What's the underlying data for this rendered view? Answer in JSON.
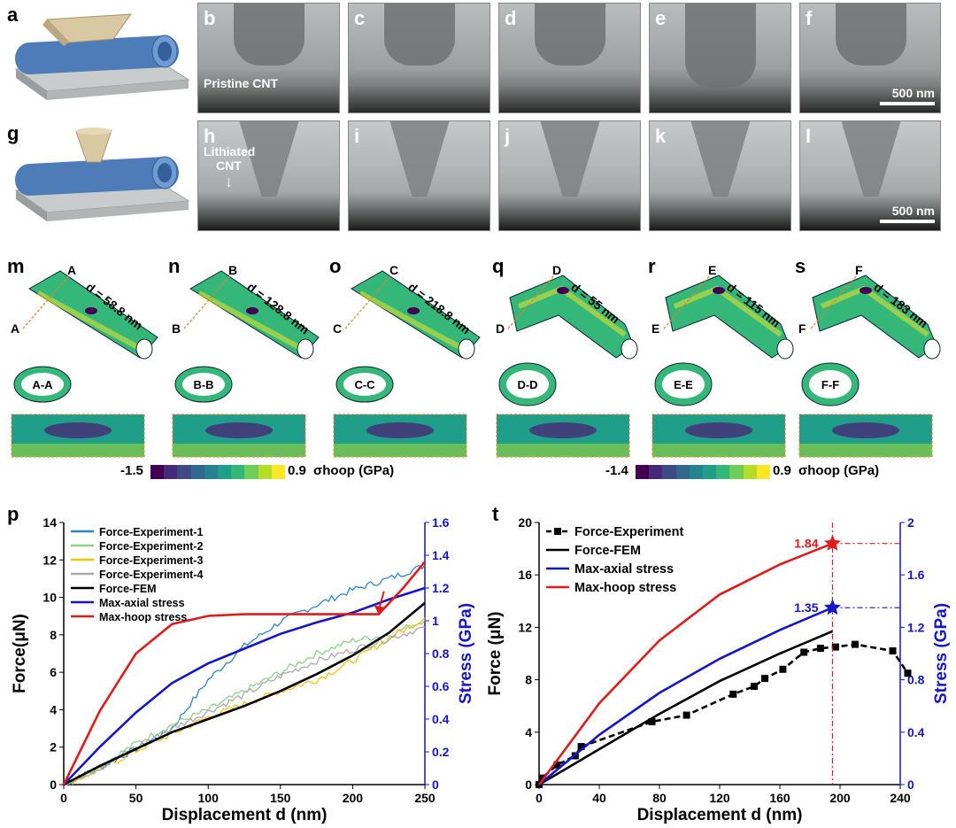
{
  "figure": {
    "letters": [
      "a",
      "b",
      "c",
      "d",
      "e",
      "f",
      "g",
      "h",
      "i",
      "j",
      "k",
      "l",
      "m",
      "n",
      "o",
      "q",
      "r",
      "s",
      "p",
      "t"
    ],
    "tem_b_caption": "Pristine CNT",
    "tem_h_caption_line1": "Lithiated",
    "tem_h_caption_line2": "CNT",
    "scale_row1": "500 nm",
    "scale_row2": "500 nm",
    "fem": {
      "m": {
        "d": "d = 58.8 nm",
        "sec": "A-A",
        "end": "A"
      },
      "n": {
        "d": "d = 128.8 nm",
        "sec": "B-B",
        "end": "B"
      },
      "o": {
        "d": "d = 218.8 nm",
        "sec": "C-C",
        "end": "C"
      },
      "q": {
        "d": "d = 55 nm",
        "sec": "D-D",
        "end": "D"
      },
      "r": {
        "d": "d = 115 nm",
        "sec": "E-E",
        "end": "E"
      },
      "s": {
        "d": "d = 183 nm",
        "sec": "F-F",
        "end": "F"
      }
    },
    "colorbar_left": {
      "min": "-1.5",
      "max": "0.9",
      "label": "σhoop (GPa)"
    },
    "colorbar_right": {
      "min": "-1.4",
      "max": "0.9",
      "label": "σhoop (GPa)"
    },
    "colormap": [
      "#440154",
      "#482878",
      "#3e4989",
      "#31688e",
      "#26828e",
      "#1f9e89",
      "#35b779",
      "#6ece58",
      "#b5de2b",
      "#fde725"
    ]
  },
  "chart_data": [
    {
      "type": "line",
      "panel": "p",
      "xlabel": "Displacement d (nm)",
      "ylabel": "Force(μN)",
      "y2label": "Stress (GPa)",
      "xlim": [
        0,
        250
      ],
      "ylim": [
        0,
        14
      ],
      "y2lim": [
        0,
        1.6
      ],
      "xticks": [
        0,
        50,
        100,
        150,
        200,
        250
      ],
      "yticks": [
        0,
        2,
        4,
        6,
        8,
        10,
        12,
        14
      ],
      "y2ticks": [
        0,
        0.2,
        0.4,
        0.6,
        0.8,
        1.0,
        1.2,
        1.4,
        1.6
      ],
      "legend_position": "top-left",
      "series": [
        {
          "name": "Force-Experiment-1",
          "color": "#2e86c8",
          "axis": "left",
          "noisy": true,
          "x": [
            0,
            25,
            50,
            75,
            100,
            125,
            150,
            175,
            200,
            225,
            250
          ],
          "y": [
            0,
            0.9,
            1.9,
            3.0,
            5.6,
            7.4,
            8.7,
            9.6,
            10.4,
            11.0,
            11.7
          ]
        },
        {
          "name": "Force-Experiment-2",
          "color": "#8fd18c",
          "axis": "left",
          "noisy": true,
          "x": [
            0,
            25,
            50,
            75,
            100,
            125,
            150,
            175,
            200,
            225,
            250
          ],
          "y": [
            0,
            1.0,
            2.2,
            3.2,
            4.0,
            5.0,
            6.0,
            7.0,
            7.7,
            8.0,
            8.8
          ]
        },
        {
          "name": "Force-Experiment-3",
          "color": "#f5c211",
          "axis": "left",
          "noisy": true,
          "x": [
            0,
            25,
            50,
            75,
            100,
            125,
            150,
            175,
            200,
            225,
            250
          ],
          "y": [
            0,
            0.8,
            1.8,
            2.7,
            3.6,
            4.3,
            5.0,
            5.6,
            6.6,
            7.8,
            8.9
          ]
        },
        {
          "name": "Force-Experiment-4",
          "color": "#a9a9a9",
          "axis": "left",
          "noisy": true,
          "x": [
            0,
            25,
            50,
            75,
            100,
            125,
            150,
            175,
            200,
            225,
            250
          ],
          "y": [
            0,
            0.9,
            2.0,
            3.0,
            3.9,
            4.8,
            5.8,
            6.6,
            7.2,
            7.8,
            8.4
          ]
        },
        {
          "name": "Force-FEM",
          "color": "#000000",
          "axis": "left",
          "x": [
            0,
            25,
            50,
            75,
            100,
            125,
            150,
            175,
            200,
            225,
            250
          ],
          "y": [
            0,
            1.0,
            1.9,
            2.8,
            3.5,
            4.2,
            5.0,
            5.9,
            6.9,
            8.1,
            9.7
          ]
        },
        {
          "name": "Max-axial stress",
          "color": "#1515c8",
          "axis": "right",
          "x": [
            0,
            25,
            50,
            75,
            100,
            125,
            150,
            175,
            200,
            225,
            250
          ],
          "y": [
            0,
            0.23,
            0.44,
            0.62,
            0.74,
            0.83,
            0.92,
            0.99,
            1.05,
            1.13,
            1.2
          ]
        },
        {
          "name": "Max-hoop stress",
          "color": "#e01b1b",
          "axis": "right",
          "x": [
            0,
            25,
            50,
            75,
            100,
            125,
            150,
            175,
            200,
            218,
            235,
            250
          ],
          "y": [
            0,
            0.45,
            0.8,
            0.98,
            1.03,
            1.04,
            1.04,
            1.04,
            1.04,
            1.04,
            1.2,
            1.36
          ]
        }
      ],
      "arrow_at": [
        218,
        1.04
      ]
    },
    {
      "type": "line",
      "panel": "t",
      "xlabel": "Displacement d (nm)",
      "ylabel": "Force (μN)",
      "y2label": "Stress (GPa)",
      "xlim": [
        0,
        240
      ],
      "ylim": [
        0,
        20
      ],
      "y2lim": [
        0,
        2
      ],
      "xticks": [
        0,
        40,
        80,
        120,
        160,
        200,
        240
      ],
      "yticks": [
        0,
        4,
        8,
        12,
        16,
        20
      ],
      "y2ticks": [
        0,
        0.4,
        0.8,
        1.2,
        1.6,
        2
      ],
      "legend_position": "top-left",
      "series": [
        {
          "name": "Force-Experiment",
          "color": "#000000",
          "axis": "left",
          "dashed": true,
          "markers": true,
          "x": [
            0,
            2,
            12,
            24,
            28,
            75,
            98,
            129,
            143,
            150,
            162,
            176,
            187,
            197,
            210,
            235,
            245
          ],
          "y": [
            0,
            0.5,
            1.5,
            2.2,
            2.9,
            4.8,
            5.3,
            6.9,
            7.5,
            8.1,
            8.8,
            10.1,
            10.4,
            10.5,
            10.7,
            10.2,
            8.5
          ]
        },
        {
          "name": "Force-FEM",
          "color": "#000000",
          "axis": "left",
          "x": [
            0,
            40,
            80,
            120,
            160,
            195
          ],
          "y": [
            0,
            2.7,
            5.4,
            7.9,
            10.0,
            11.7
          ]
        },
        {
          "name": "Max-axial stress",
          "color": "#1515c8",
          "axis": "right",
          "x": [
            0,
            40,
            80,
            120,
            160,
            195
          ],
          "y": [
            0,
            0.38,
            0.7,
            0.96,
            1.18,
            1.35
          ]
        },
        {
          "name": "Max-hoop stress",
          "color": "#e01b1b",
          "axis": "right",
          "x": [
            0,
            40,
            80,
            120,
            160,
            195
          ],
          "y": [
            0,
            0.62,
            1.1,
            1.45,
            1.68,
            1.84
          ]
        }
      ],
      "callouts": [
        {
          "label": "1.84",
          "x": 195,
          "y": 1.84,
          "color": "#e01b1b"
        },
        {
          "label": "1.35",
          "x": 195,
          "y": 1.35,
          "color": "#1515c8"
        }
      ],
      "vline_x": 195
    }
  ]
}
